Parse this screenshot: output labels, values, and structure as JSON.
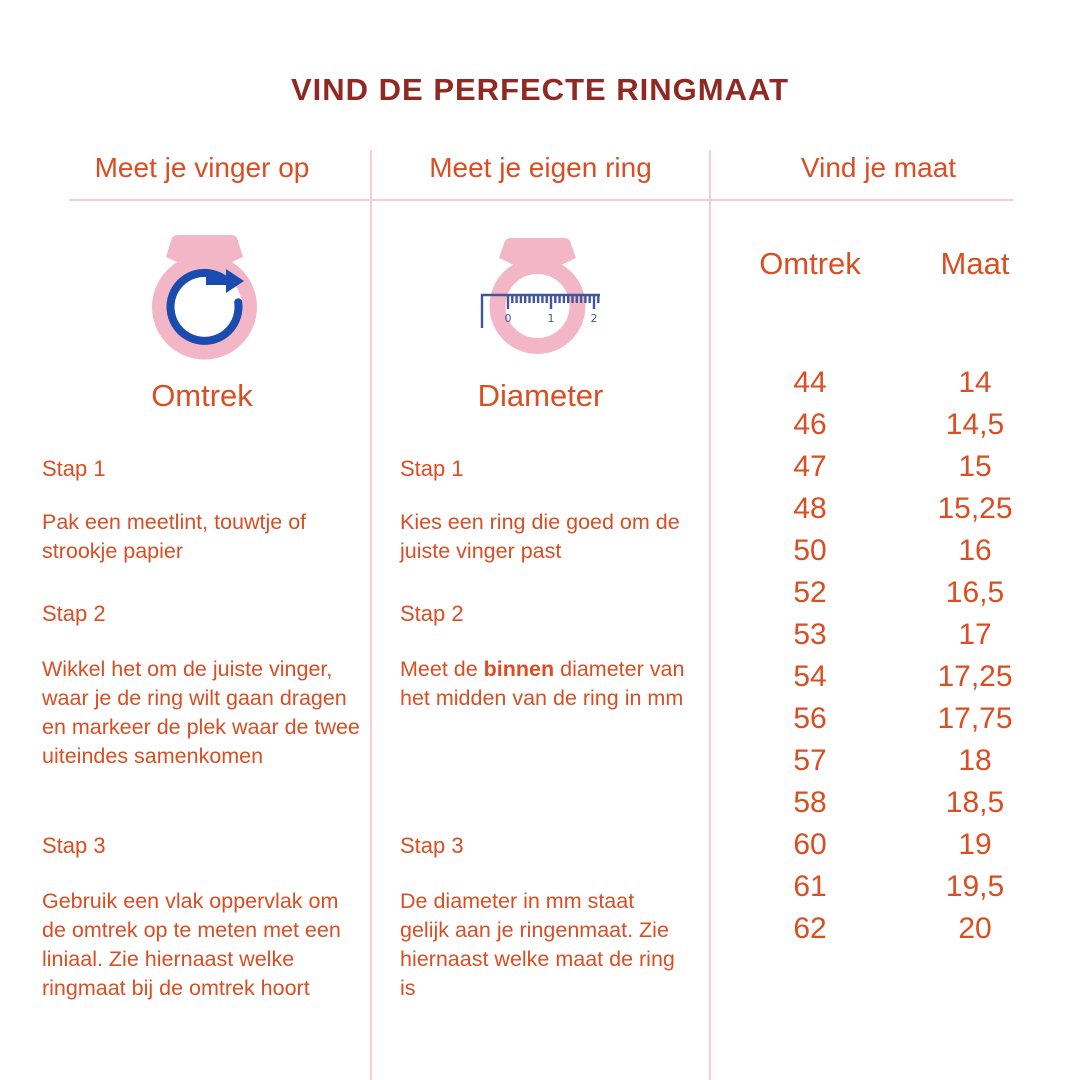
{
  "title": "VIND DE PERFECTE RINGMAAT",
  "colors": {
    "title_maroon": "#8E2923",
    "accent_orange": "#D94E23",
    "divider_pink": "#F6CDD5",
    "ring_pink": "#F3B6C6",
    "arrow_blue": "#1A4BAE",
    "ruler_blue": "#41569E"
  },
  "columns": [
    {
      "header": "Meet je vinger op",
      "label": "Omtrek",
      "steps": [
        {
          "title": "Stap 1",
          "text": "Pak een meetlint, touwtje of strookje papier"
        },
        {
          "title": "Stap 2",
          "text": "Wikkel het om de juiste vinger, waar je de ring wilt gaan dragen en markeer de plek waar de twee uiteindes samenkomen"
        },
        {
          "title": "Stap 3",
          "text": "Gebruik een vlak oppervlak om de omtrek op te meten met een liniaal. Zie hiernaast welke ringmaat bij de omtrek hoort"
        }
      ]
    },
    {
      "header": "Meet je eigen ring",
      "label": "Diameter",
      "steps": [
        {
          "title": "Stap 1",
          "text": "Kies een ring die goed om de juiste vinger past"
        },
        {
          "title": "Stap 2",
          "text_before": "Meet de ",
          "text_bold": "binnen",
          "text_after": " diameter van het midden van de ring in mm"
        },
        {
          "title": "Stap 3",
          "text": "De diameter in mm staat gelijk aan je ringenmaat. Zie hiernaast welke maat de ring is"
        }
      ]
    },
    {
      "header": "Vind je maat"
    }
  ],
  "ruler_labels": [
    "0",
    "1",
    "2"
  ],
  "size_table": {
    "headers": [
      "Omtrek",
      "Maat"
    ],
    "rows": [
      [
        "44",
        "14"
      ],
      [
        "46",
        "14,5"
      ],
      [
        "47",
        "15"
      ],
      [
        "48",
        "15,25"
      ],
      [
        "50",
        "16"
      ],
      [
        "52",
        "16,5"
      ],
      [
        "53",
        "17"
      ],
      [
        "54",
        "17,25"
      ],
      [
        "56",
        "17,75"
      ],
      [
        "57",
        "18"
      ],
      [
        "58",
        "18,5"
      ],
      [
        "60",
        "19"
      ],
      [
        "61",
        "19,5"
      ],
      [
        "62",
        "20"
      ]
    ]
  }
}
